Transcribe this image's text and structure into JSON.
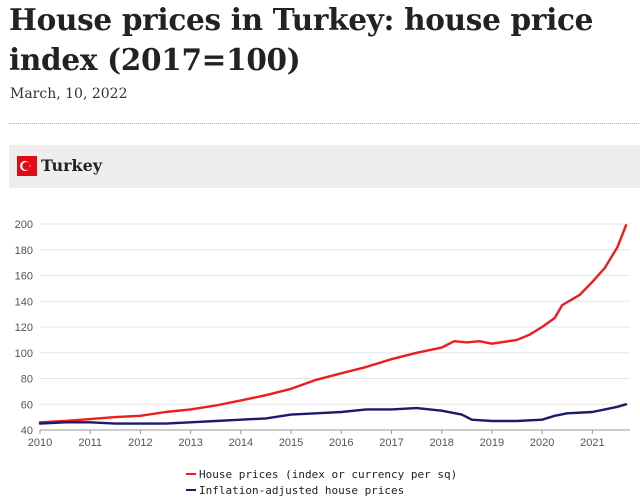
{
  "header": {
    "title": "House prices in Turkey: house price index (2017=100)",
    "date": "March, 10, 2022"
  },
  "country": {
    "name": "Turkey",
    "flag_icon": "turkey-flag-icon",
    "flag_color": "#e30a17"
  },
  "colors": {
    "nominal": "#ee1c1c",
    "real": "#1a1a6e",
    "grid": "#e6e6e6",
    "axis_text": "#555555"
  },
  "chart_data": {
    "type": "line",
    "title": "",
    "xlabel": "",
    "ylabel": "",
    "xlim": [
      2010,
      2021.75
    ],
    "ylim": [
      40,
      200
    ],
    "x_ticks": [
      "2010",
      "2011",
      "2012",
      "2013",
      "2014",
      "2015",
      "2016",
      "2017",
      "2018",
      "2019",
      "2020",
      "2021"
    ],
    "y_ticks": [
      "40",
      "60",
      "80",
      "100",
      "120",
      "140",
      "160",
      "180",
      "200"
    ],
    "grid": true,
    "legend_position": "bottom",
    "series": [
      {
        "name": "House prices (index or currency per sq)",
        "color": "#ee1c1c",
        "points": [
          [
            2010,
            46
          ],
          [
            2010.5,
            47
          ],
          [
            2011,
            48.5
          ],
          [
            2011.5,
            50
          ],
          [
            2012,
            51
          ],
          [
            2012.5,
            54
          ],
          [
            2013,
            56
          ],
          [
            2013.5,
            59
          ],
          [
            2014,
            63
          ],
          [
            2014.5,
            67
          ],
          [
            2015,
            72
          ],
          [
            2015.5,
            79
          ],
          [
            2016,
            84
          ],
          [
            2016.5,
            89
          ],
          [
            2017,
            95
          ],
          [
            2017.5,
            100
          ],
          [
            2018,
            104
          ],
          [
            2018.25,
            109
          ],
          [
            2018.5,
            108
          ],
          [
            2018.75,
            109
          ],
          [
            2019,
            107
          ],
          [
            2019.5,
            110
          ],
          [
            2019.75,
            114
          ],
          [
            2020,
            120
          ],
          [
            2020.25,
            127
          ],
          [
            2020.4,
            137
          ],
          [
            2020.75,
            145
          ],
          [
            2021,
            155
          ],
          [
            2021.25,
            166
          ],
          [
            2021.5,
            182
          ],
          [
            2021.6,
            192
          ],
          [
            2021.67,
            199
          ]
        ]
      },
      {
        "name": "Inflation-adjusted house prices",
        "color": "#1a1a6e",
        "points": [
          [
            2010,
            45
          ],
          [
            2010.5,
            46
          ],
          [
            2011,
            46
          ],
          [
            2011.5,
            45
          ],
          [
            2012,
            45
          ],
          [
            2012.5,
            45
          ],
          [
            2013,
            46
          ],
          [
            2013.5,
            47
          ],
          [
            2014,
            48
          ],
          [
            2014.5,
            49
          ],
          [
            2015,
            52
          ],
          [
            2015.5,
            53
          ],
          [
            2016,
            54
          ],
          [
            2016.5,
            56
          ],
          [
            2017,
            56
          ],
          [
            2017.5,
            57
          ],
          [
            2018,
            55
          ],
          [
            2018.4,
            52
          ],
          [
            2018.6,
            48
          ],
          [
            2019,
            47
          ],
          [
            2019.5,
            47
          ],
          [
            2020,
            48
          ],
          [
            2020.25,
            51
          ],
          [
            2020.5,
            53
          ],
          [
            2021,
            54
          ],
          [
            2021.25,
            56
          ],
          [
            2021.5,
            58
          ],
          [
            2021.67,
            60
          ]
        ]
      }
    ]
  }
}
